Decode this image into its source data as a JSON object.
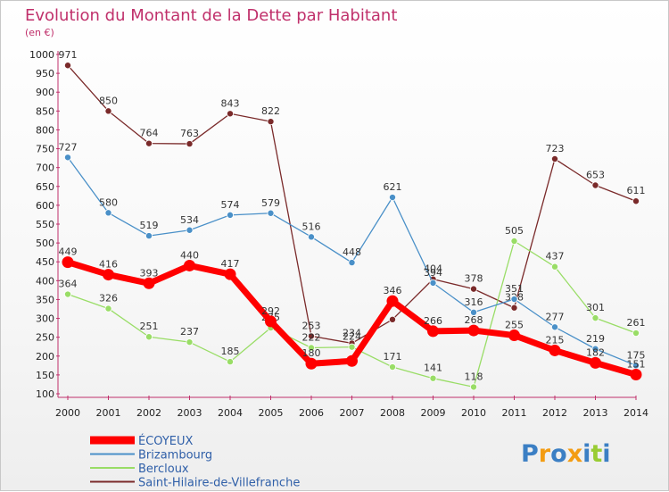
{
  "chart_data": {
    "type": "line",
    "title": "Evolution du Montant de la Dette par Habitant",
    "subtitle": "(en €)",
    "xlabel": "",
    "ylabel": "",
    "categories": [
      "2000",
      "2001",
      "2002",
      "2003",
      "2004",
      "2005",
      "2006",
      "2007",
      "2008",
      "2009",
      "2010",
      "2011",
      "2012",
      "2013",
      "2014"
    ],
    "ylim": [
      100,
      1000
    ],
    "yticks": [
      100,
      150,
      200,
      250,
      300,
      350,
      400,
      450,
      500,
      550,
      600,
      650,
      700,
      750,
      800,
      850,
      900,
      950,
      1000
    ],
    "grid": false,
    "legend_position": "bottom-left",
    "series": [
      {
        "name": "ÉCOYEUX",
        "color": "#ff0000",
        "values": [
          449,
          416,
          393,
          440,
          417,
          292,
          180,
          187,
          346,
          266,
          268,
          255,
          215,
          182,
          151
        ],
        "labels": [
          "449",
          "416",
          "393",
          "440",
          "417",
          "292",
          "180",
          "",
          "346",
          "266",
          "268",
          "255",
          "215",
          "182",
          "151"
        ]
      },
      {
        "name": "Brizambourg",
        "color": "#4a90c8",
        "values": [
          727,
          580,
          519,
          534,
          574,
          579,
          516,
          448,
          621,
          394,
          316,
          351,
          277,
          219,
          175
        ],
        "labels": [
          "727",
          "580",
          "519",
          "534",
          "574",
          "579",
          "516",
          "448",
          "621",
          "394",
          "316",
          "351",
          "277",
          "219",
          "175"
        ]
      },
      {
        "name": "Bercloux",
        "color": "#99dd66",
        "values": [
          364,
          326,
          251,
          237,
          185,
          275,
          222,
          224,
          171,
          141,
          118,
          505,
          437,
          301,
          261
        ],
        "labels": [
          "364",
          "326",
          "251",
          "237",
          "185",
          "275",
          "222",
          "224",
          "171",
          "141",
          "118",
          "505",
          "437",
          "301",
          "261"
        ]
      },
      {
        "name": "Saint-Hilaire-de-Villefranche",
        "color": "#7a2a2a",
        "values": [
          971,
          850,
          764,
          763,
          843,
          822,
          253,
          234,
          297,
          404,
          378,
          328,
          723,
          653,
          611
        ],
        "labels": [
          "971",
          "850",
          "764",
          "763",
          "843",
          "822",
          "253",
          "234",
          "",
          "404",
          "378",
          "328",
          "723",
          "653",
          "611"
        ]
      }
    ]
  },
  "brand": {
    "text": "Proxiti",
    "letter_colors": [
      "#3b7fc4",
      "#f39c12",
      "#3b7fc4",
      "#f39c12",
      "#3b7fc4",
      "#99cc33",
      "#3b7fc4"
    ]
  }
}
